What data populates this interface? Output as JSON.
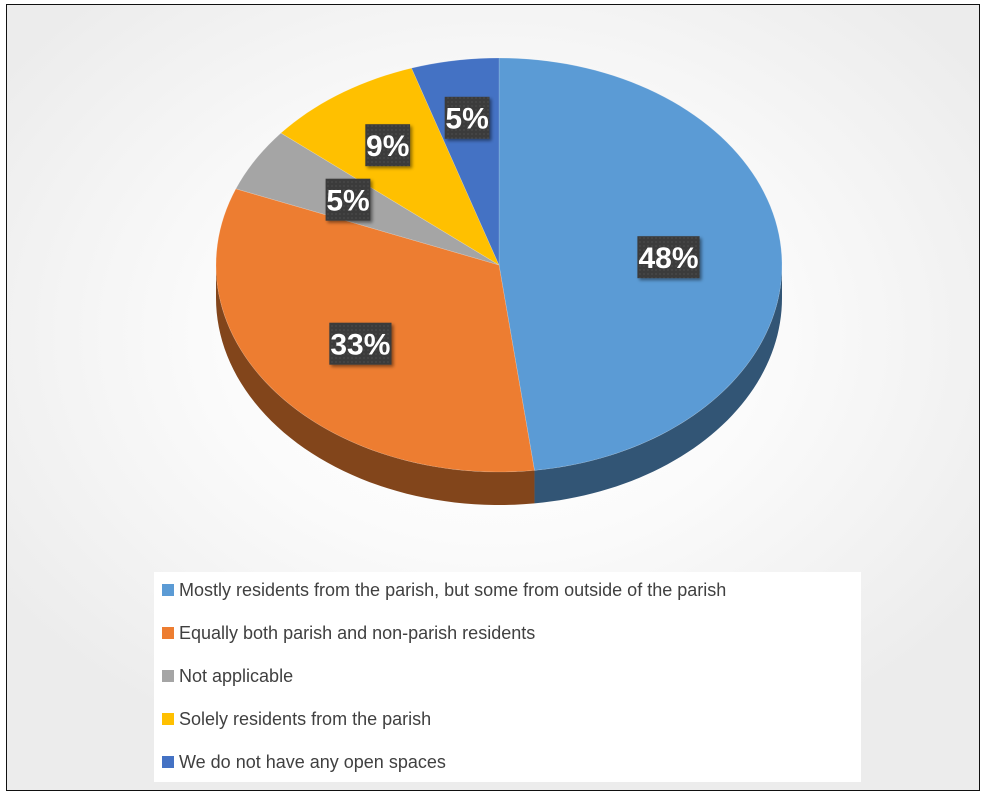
{
  "chart_data": {
    "type": "pie",
    "title": "",
    "slices": [
      {
        "label": "Mostly residents from the parish, but some from outside of the parish",
        "value": 48,
        "display": "48%",
        "color": "#5B9BD5"
      },
      {
        "label": "Equally both parish and non-parish residents",
        "value": 33,
        "display": "33%",
        "color": "#ED7D31"
      },
      {
        "label": "Not applicable",
        "value": 5,
        "display": "5%",
        "color": "#A5A5A5"
      },
      {
        "label": "Solely residents from the parish",
        "value": 9,
        "display": "9%",
        "color": "#FFC000"
      },
      {
        "label": "We do not have any open spaces",
        "value": 5,
        "display": "5%",
        "color": "#4472C4"
      }
    ],
    "legend_position": "bottom",
    "style": "3d"
  }
}
